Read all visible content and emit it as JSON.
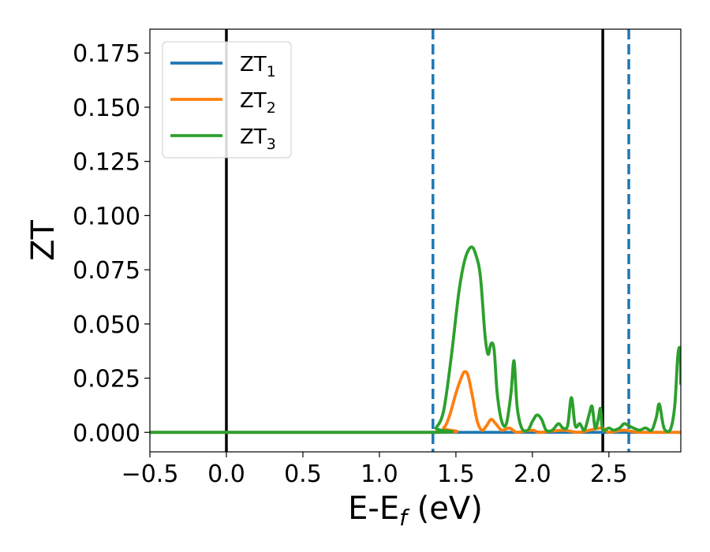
{
  "chart_data": {
    "type": "line",
    "xlabel": "E-E",
    "xlabel_sub": "f",
    "xlabel_unit": " (eV)",
    "ylabel": "ZT",
    "xlim": [
      -0.5,
      2.97
    ],
    "ylim": [
      -0.009,
      0.186
    ],
    "grid": false,
    "legend_position": "upper-left",
    "x_ticks": [
      {
        "value": -0.5,
        "label": "−0.5"
      },
      {
        "value": 0.0,
        "label": "0.0"
      },
      {
        "value": 0.5,
        "label": "0.5"
      },
      {
        "value": 1.0,
        "label": "1.0"
      },
      {
        "value": 1.5,
        "label": "1.5"
      },
      {
        "value": 2.0,
        "label": "2.0"
      },
      {
        "value": 2.5,
        "label": "2.5"
      }
    ],
    "y_ticks": [
      {
        "value": 0.0,
        "label": "0.000"
      },
      {
        "value": 0.025,
        "label": "0.025"
      },
      {
        "value": 0.05,
        "label": "0.050"
      },
      {
        "value": 0.075,
        "label": "0.075"
      },
      {
        "value": 0.1,
        "label": "0.100"
      },
      {
        "value": 0.125,
        "label": "0.125"
      },
      {
        "value": 0.15,
        "label": "0.150"
      },
      {
        "value": 0.175,
        "label": "0.175"
      }
    ],
    "vertical_lines": [
      {
        "x": 0.0,
        "style": "solid",
        "color": "#000000"
      },
      {
        "x": 2.46,
        "style": "solid",
        "color": "#000000"
      },
      {
        "x": 1.35,
        "style": "dashed",
        "color": "#1f77b4"
      },
      {
        "x": 2.63,
        "style": "dashed",
        "color": "#1f77b4"
      }
    ],
    "series": [
      {
        "name": "ZT",
        "subscript": "1",
        "color": "#1f77b4",
        "points": [
          [
            -0.5,
            0.0
          ],
          [
            1.35,
            0.0
          ],
          [
            2.0,
            0.0
          ],
          [
            2.5,
            0.0
          ],
          [
            2.97,
            0.0
          ]
        ]
      },
      {
        "name": "ZT",
        "subscript": "2",
        "color": "#ff7f0e",
        "points": [
          [
            -0.5,
            0.0
          ],
          [
            1.35,
            0.0
          ],
          [
            1.42,
            0.002
          ],
          [
            1.46,
            0.008
          ],
          [
            1.5,
            0.018
          ],
          [
            1.54,
            0.026
          ],
          [
            1.56,
            0.028
          ],
          [
            1.58,
            0.026
          ],
          [
            1.61,
            0.016
          ],
          [
            1.64,
            0.005
          ],
          [
            1.67,
            0.001
          ],
          [
            1.7,
            0.003
          ],
          [
            1.73,
            0.006
          ],
          [
            1.76,
            0.004
          ],
          [
            1.8,
            0.001
          ],
          [
            1.85,
            0.002
          ],
          [
            1.9,
            0.0
          ],
          [
            2.0,
            0.001
          ],
          [
            2.05,
            0.0
          ],
          [
            2.2,
            0.001
          ],
          [
            2.3,
            0.0
          ],
          [
            2.45,
            0.002
          ],
          [
            2.5,
            0.0
          ],
          [
            2.6,
            0.001
          ],
          [
            2.7,
            0.0
          ],
          [
            2.97,
            0.0
          ]
        ]
      },
      {
        "name": "ZT",
        "subscript": "3",
        "color": "#2ca02c",
        "points": [
          [
            -0.5,
            0.0
          ],
          [
            1.33,
            0.0
          ],
          [
            1.37,
            0.002
          ],
          [
            1.42,
            0.01
          ],
          [
            1.47,
            0.035
          ],
          [
            1.52,
            0.065
          ],
          [
            1.56,
            0.08
          ],
          [
            1.6,
            0.0855
          ],
          [
            1.63,
            0.082
          ],
          [
            1.66,
            0.072
          ],
          [
            1.69,
            0.045
          ],
          [
            1.71,
            0.036
          ],
          [
            1.73,
            0.041
          ],
          [
            1.75,
            0.038
          ],
          [
            1.77,
            0.018
          ],
          [
            1.8,
            0.005
          ],
          [
            1.83,
            0.004
          ],
          [
            1.86,
            0.018
          ],
          [
            1.88,
            0.033
          ],
          [
            1.9,
            0.012
          ],
          [
            1.93,
            0.002
          ],
          [
            1.97,
            0.001
          ],
          [
            2.0,
            0.005
          ],
          [
            2.03,
            0.008
          ],
          [
            2.06,
            0.006
          ],
          [
            2.09,
            0.001
          ],
          [
            2.13,
            0.001
          ],
          [
            2.17,
            0.004
          ],
          [
            2.2,
            0.002
          ],
          [
            2.23,
            0.003
          ],
          [
            2.255,
            0.016
          ],
          [
            2.28,
            0.003
          ],
          [
            2.31,
            0.004
          ],
          [
            2.34,
            0.001
          ],
          [
            2.37,
            0.008
          ],
          [
            2.39,
            0.012
          ],
          [
            2.41,
            0.002
          ],
          [
            2.43,
            0.006
          ],
          [
            2.445,
            0.011
          ],
          [
            2.46,
            0.001
          ],
          [
            2.5,
            0.002
          ],
          [
            2.53,
            0.001
          ],
          [
            2.57,
            0.002
          ],
          [
            2.6,
            0.004
          ],
          [
            2.63,
            0.003
          ],
          [
            2.66,
            0.002
          ],
          [
            2.7,
            0.001
          ],
          [
            2.74,
            0.002
          ],
          [
            2.78,
            0.001
          ],
          [
            2.81,
            0.007
          ],
          [
            2.83,
            0.013
          ],
          [
            2.86,
            0.002
          ],
          [
            2.9,
            0.001
          ],
          [
            2.93,
            0.012
          ],
          [
            2.95,
            0.035
          ],
          [
            2.965,
            0.038
          ],
          [
            2.97,
            0.022
          ]
        ]
      }
    ]
  }
}
